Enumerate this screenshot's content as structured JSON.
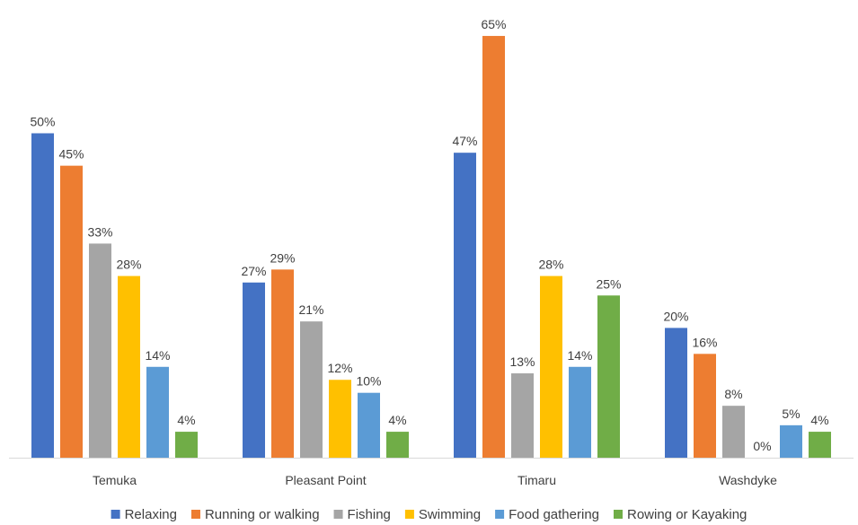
{
  "chart_data": {
    "type": "bar",
    "title": "",
    "xlabel": "",
    "ylabel": "",
    "ylim": [
      0,
      66
    ],
    "grid": false,
    "legend_position": "bottom",
    "value_suffix": "%",
    "categories": [
      "Temuka",
      "Pleasant Point",
      "Timaru",
      "Washdyke"
    ],
    "series": [
      {
        "name": "Relaxing",
        "color": "#4472c4",
        "values": [
          50,
          27,
          47,
          20
        ]
      },
      {
        "name": "Running or walking",
        "color": "#ed7d31",
        "values": [
          45,
          29,
          65,
          16
        ]
      },
      {
        "name": "Fishing",
        "color": "#a5a5a5",
        "values": [
          33,
          21,
          13,
          8
        ]
      },
      {
        "name": "Swimming",
        "color": "#ffc000",
        "values": [
          28,
          12,
          28,
          0
        ]
      },
      {
        "name": "Food gathering",
        "color": "#5b9bd5",
        "values": [
          14,
          10,
          14,
          5
        ]
      },
      {
        "name": "Rowing or Kayaking",
        "color": "#70ad47",
        "values": [
          4,
          4,
          25,
          4
        ]
      }
    ]
  }
}
